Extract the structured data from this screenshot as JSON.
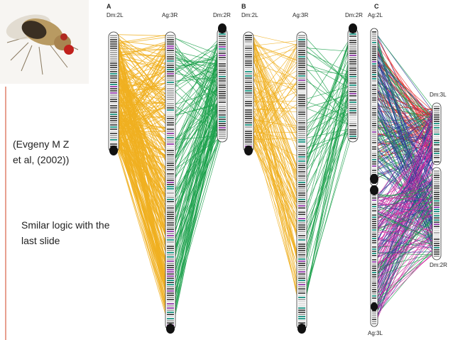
{
  "figure": {
    "panels": [
      {
        "label": "A",
        "chromosomes": [
          "Dm:2L",
          "Ag:3R",
          "Dm:2R"
        ]
      },
      {
        "label": "B",
        "chromosomes": [
          "Dm:2L",
          "Ag:3R",
          "Dm:2R"
        ]
      },
      {
        "label": "C",
        "chromosomes": [
          "Ag:2L",
          "Dm:3L",
          "Dm:2R",
          "Ag:3L"
        ]
      }
    ]
  },
  "citation": [
    "(Evgeny M Z",
    "et al, (2002))"
  ],
  "note": [
    "Smilar logic with the",
    "last slide"
  ]
}
